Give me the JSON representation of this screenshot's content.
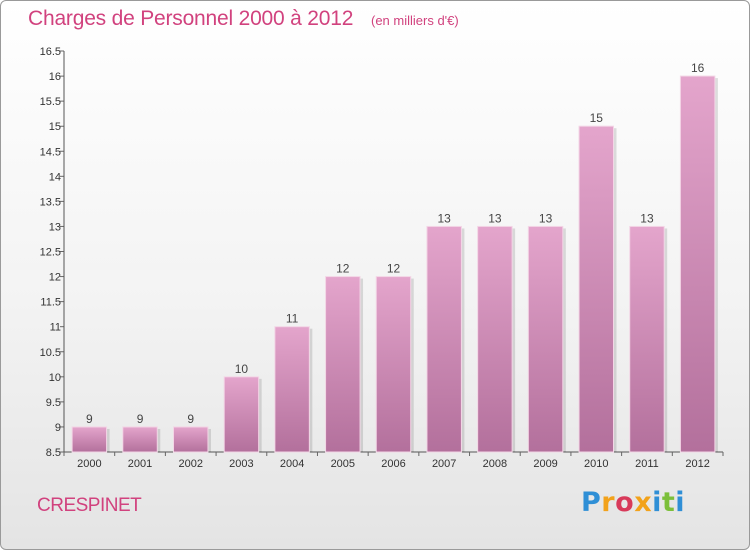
{
  "header": {
    "title": "Charges de Personnel 2000 à 2012",
    "subtitle": "(en milliers d'€)"
  },
  "footer": {
    "commune": "CRESPINET",
    "logo_letters": [
      {
        "char": "P",
        "color": "#2f8fd6"
      },
      {
        "char": "r",
        "color": "#f2a21b"
      },
      {
        "char": "o",
        "color": "#d83a5a"
      },
      {
        "char": "x",
        "color": "#f2a21b"
      },
      {
        "char": "i",
        "color": "#2f8fd6"
      },
      {
        "char": "t",
        "color": "#7cbf3a"
      },
      {
        "char": "i",
        "color": "#2f8fd6"
      }
    ]
  },
  "colors": {
    "bar_top": "#e4a5cc",
    "bar_bottom": "#b3709c",
    "accent": "#d1427e"
  },
  "chart_data": {
    "type": "bar",
    "categories": [
      "2000",
      "2001",
      "2002",
      "2003",
      "2004",
      "2005",
      "2006",
      "2007",
      "2008",
      "2009",
      "2010",
      "2011",
      "2012"
    ],
    "values": [
      9,
      9,
      9,
      10,
      11,
      12,
      12,
      13,
      13,
      13,
      15,
      13,
      16
    ],
    "data_labels": [
      "9",
      "9",
      "9",
      "10",
      "11",
      "12",
      "12",
      "13",
      "13",
      "13",
      "15",
      "13",
      "16"
    ],
    "ylim": [
      8.5,
      16.5
    ],
    "yticks": [
      8.5,
      9,
      9.5,
      10,
      10.5,
      11,
      11.5,
      12,
      12.5,
      13,
      13.5,
      14,
      14.5,
      15,
      15.5,
      16,
      16.5
    ],
    "ytick_labels": [
      "8.5",
      "9",
      "9.5",
      "10",
      "10.5",
      "11",
      "11.5",
      "12",
      "12.5",
      "13",
      "13.5",
      "14",
      "14.5",
      "15",
      "15.5",
      "16",
      "16.5"
    ],
    "grid": false
  }
}
